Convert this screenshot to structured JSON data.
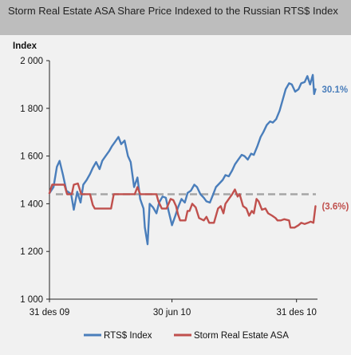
{
  "title": "Storm Real Estate ASA Share Price Indexed to the Russian RTS$ Index",
  "chart_data": {
    "type": "line",
    "title": "Storm Real Estate ASA Share Price Indexed to the Russian RTS$ Index",
    "ylabel": "Index",
    "xlabel": "",
    "ylim": [
      1000,
      2000
    ],
    "yticks": [
      1000,
      1200,
      1400,
      1600,
      1800,
      2000
    ],
    "ytick_labels": [
      "1 000",
      "1 200",
      "1 400",
      "1 600",
      "1 800",
      "2 000"
    ],
    "xlim": [
      "2009-12-31",
      "2011-01-31"
    ],
    "xticks": [
      "2009-12-31",
      "2010-06-30",
      "2010-12-31"
    ],
    "xtick_labels": [
      "31 des 09",
      "30 jun 10",
      "31 des 10"
    ],
    "grid": false,
    "legend_position": "bottom",
    "reference_line": {
      "value": 1440,
      "style": "dashed"
    },
    "series": [
      {
        "name": "RTS$ Index",
        "color": "#4a7ebb",
        "end_label": "30.1%",
        "points": [
          [
            "2009-12-31",
            1444
          ],
          [
            "2010-01-06",
            1470
          ],
          [
            "2010-01-11",
            1555
          ],
          [
            "2010-01-15",
            1580
          ],
          [
            "2010-01-20",
            1520
          ],
          [
            "2010-01-25",
            1455
          ],
          [
            "2010-02-01",
            1440
          ],
          [
            "2010-02-05",
            1375
          ],
          [
            "2010-02-10",
            1450
          ],
          [
            "2010-02-15",
            1405
          ],
          [
            "2010-02-19",
            1480
          ],
          [
            "2010-02-24",
            1500
          ],
          [
            "2010-03-01",
            1525
          ],
          [
            "2010-03-05",
            1550
          ],
          [
            "2010-03-10",
            1575
          ],
          [
            "2010-03-15",
            1545
          ],
          [
            "2010-03-19",
            1580
          ],
          [
            "2010-03-24",
            1600
          ],
          [
            "2010-03-29",
            1620
          ],
          [
            "2010-04-02",
            1640
          ],
          [
            "2010-04-07",
            1660
          ],
          [
            "2010-04-12",
            1680
          ],
          [
            "2010-04-16",
            1650
          ],
          [
            "2010-04-21",
            1665
          ],
          [
            "2010-04-26",
            1600
          ],
          [
            "2010-04-30",
            1575
          ],
          [
            "2010-05-05",
            1470
          ],
          [
            "2010-05-10",
            1510
          ],
          [
            "2010-05-14",
            1420
          ],
          [
            "2010-05-19",
            1380
          ],
          [
            "2010-05-21",
            1300
          ],
          [
            "2010-05-25",
            1230
          ],
          [
            "2010-05-28",
            1400
          ],
          [
            "2010-06-02",
            1385
          ],
          [
            "2010-06-07",
            1360
          ],
          [
            "2010-06-11",
            1405
          ],
          [
            "2010-06-16",
            1430
          ],
          [
            "2010-06-21",
            1425
          ],
          [
            "2010-06-25",
            1370
          ],
          [
            "2010-06-30",
            1310
          ],
          [
            "2010-07-05",
            1350
          ],
          [
            "2010-07-09",
            1385
          ],
          [
            "2010-07-14",
            1420
          ],
          [
            "2010-07-19",
            1405
          ],
          [
            "2010-07-23",
            1445
          ],
          [
            "2010-07-28",
            1455
          ],
          [
            "2010-08-02",
            1480
          ],
          [
            "2010-08-06",
            1470
          ],
          [
            "2010-08-11",
            1440
          ],
          [
            "2010-08-16",
            1425
          ],
          [
            "2010-08-20",
            1410
          ],
          [
            "2010-08-25",
            1405
          ],
          [
            "2010-08-30",
            1440
          ],
          [
            "2010-09-03",
            1470
          ],
          [
            "2010-09-08",
            1485
          ],
          [
            "2010-09-13",
            1500
          ],
          [
            "2010-09-17",
            1520
          ],
          [
            "2010-09-22",
            1515
          ],
          [
            "2010-09-27",
            1540
          ],
          [
            "2010-10-01",
            1565
          ],
          [
            "2010-10-06",
            1585
          ],
          [
            "2010-10-11",
            1605
          ],
          [
            "2010-10-15",
            1600
          ],
          [
            "2010-10-20",
            1585
          ],
          [
            "2010-10-25",
            1610
          ],
          [
            "2010-10-29",
            1605
          ],
          [
            "2010-11-03",
            1640
          ],
          [
            "2010-11-08",
            1680
          ],
          [
            "2010-11-12",
            1700
          ],
          [
            "2010-11-17",
            1730
          ],
          [
            "2010-11-22",
            1745
          ],
          [
            "2010-11-26",
            1740
          ],
          [
            "2010-12-01",
            1755
          ],
          [
            "2010-12-06",
            1790
          ],
          [
            "2010-12-10",
            1830
          ],
          [
            "2010-12-15",
            1880
          ],
          [
            "2010-12-20",
            1905
          ],
          [
            "2010-12-24",
            1900
          ],
          [
            "2010-12-29",
            1870
          ],
          [
            "2011-01-03",
            1880
          ],
          [
            "2011-01-07",
            1905
          ],
          [
            "2011-01-12",
            1910
          ],
          [
            "2011-01-16",
            1935
          ],
          [
            "2011-01-20",
            1900
          ],
          [
            "2011-01-24",
            1940
          ],
          [
            "2011-01-26",
            1860
          ],
          [
            "2011-01-28",
            1880
          ]
        ]
      },
      {
        "name": "Storm Real Estate ASA",
        "color": "#c0504d",
        "end_label": "(3.6%)",
        "points": [
          [
            "2009-12-31",
            1444
          ],
          [
            "2010-01-04",
            1480
          ],
          [
            "2010-01-22",
            1480
          ],
          [
            "2010-01-26",
            1440
          ],
          [
            "2010-02-02",
            1440
          ],
          [
            "2010-02-05",
            1480
          ],
          [
            "2010-02-11",
            1485
          ],
          [
            "2010-02-16",
            1440
          ],
          [
            "2010-03-01",
            1440
          ],
          [
            "2010-03-05",
            1395
          ],
          [
            "2010-03-08",
            1380
          ],
          [
            "2010-04-01",
            1380
          ],
          [
            "2010-04-05",
            1440
          ],
          [
            "2010-05-06",
            1440
          ],
          [
            "2010-05-10",
            1470
          ],
          [
            "2010-05-14",
            1440
          ],
          [
            "2010-06-07",
            1440
          ],
          [
            "2010-06-10",
            1410
          ],
          [
            "2010-06-15",
            1380
          ],
          [
            "2010-06-22",
            1380
          ],
          [
            "2010-06-28",
            1420
          ],
          [
            "2010-07-02",
            1415
          ],
          [
            "2010-07-06",
            1390
          ],
          [
            "2010-07-09",
            1355
          ],
          [
            "2010-07-12",
            1330
          ],
          [
            "2010-07-20",
            1330
          ],
          [
            "2010-07-23",
            1370
          ],
          [
            "2010-07-26",
            1370
          ],
          [
            "2010-07-30",
            1400
          ],
          [
            "2010-08-04",
            1385
          ],
          [
            "2010-08-09",
            1340
          ],
          [
            "2010-08-16",
            1330
          ],
          [
            "2010-08-20",
            1345
          ],
          [
            "2010-08-24",
            1320
          ],
          [
            "2010-08-31",
            1320
          ],
          [
            "2010-09-06",
            1380
          ],
          [
            "2010-09-10",
            1390
          ],
          [
            "2010-09-14",
            1360
          ],
          [
            "2010-09-17",
            1400
          ],
          [
            "2010-09-22",
            1420
          ],
          [
            "2010-09-27",
            1440
          ],
          [
            "2010-10-01",
            1460
          ],
          [
            "2010-10-05",
            1430
          ],
          [
            "2010-10-08",
            1440
          ],
          [
            "2010-10-13",
            1390
          ],
          [
            "2010-10-18",
            1380
          ],
          [
            "2010-10-22",
            1350
          ],
          [
            "2010-10-26",
            1370
          ],
          [
            "2010-10-29",
            1360
          ],
          [
            "2010-11-02",
            1420
          ],
          [
            "2010-11-05",
            1410
          ],
          [
            "2010-11-10",
            1375
          ],
          [
            "2010-11-15",
            1380
          ],
          [
            "2010-11-19",
            1360
          ],
          [
            "2010-11-25",
            1350
          ],
          [
            "2010-11-30",
            1340
          ],
          [
            "2010-12-03",
            1330
          ],
          [
            "2010-12-08",
            1330
          ],
          [
            "2010-12-13",
            1335
          ],
          [
            "2010-12-20",
            1330
          ],
          [
            "2010-12-22",
            1300
          ],
          [
            "2010-12-28",
            1300
          ],
          [
            "2011-01-03",
            1310
          ],
          [
            "2011-01-07",
            1320
          ],
          [
            "2011-01-12",
            1315
          ],
          [
            "2011-01-17",
            1320
          ],
          [
            "2011-01-21",
            1325
          ],
          [
            "2011-01-25",
            1320
          ],
          [
            "2011-01-28",
            1390
          ]
        ]
      }
    ]
  }
}
